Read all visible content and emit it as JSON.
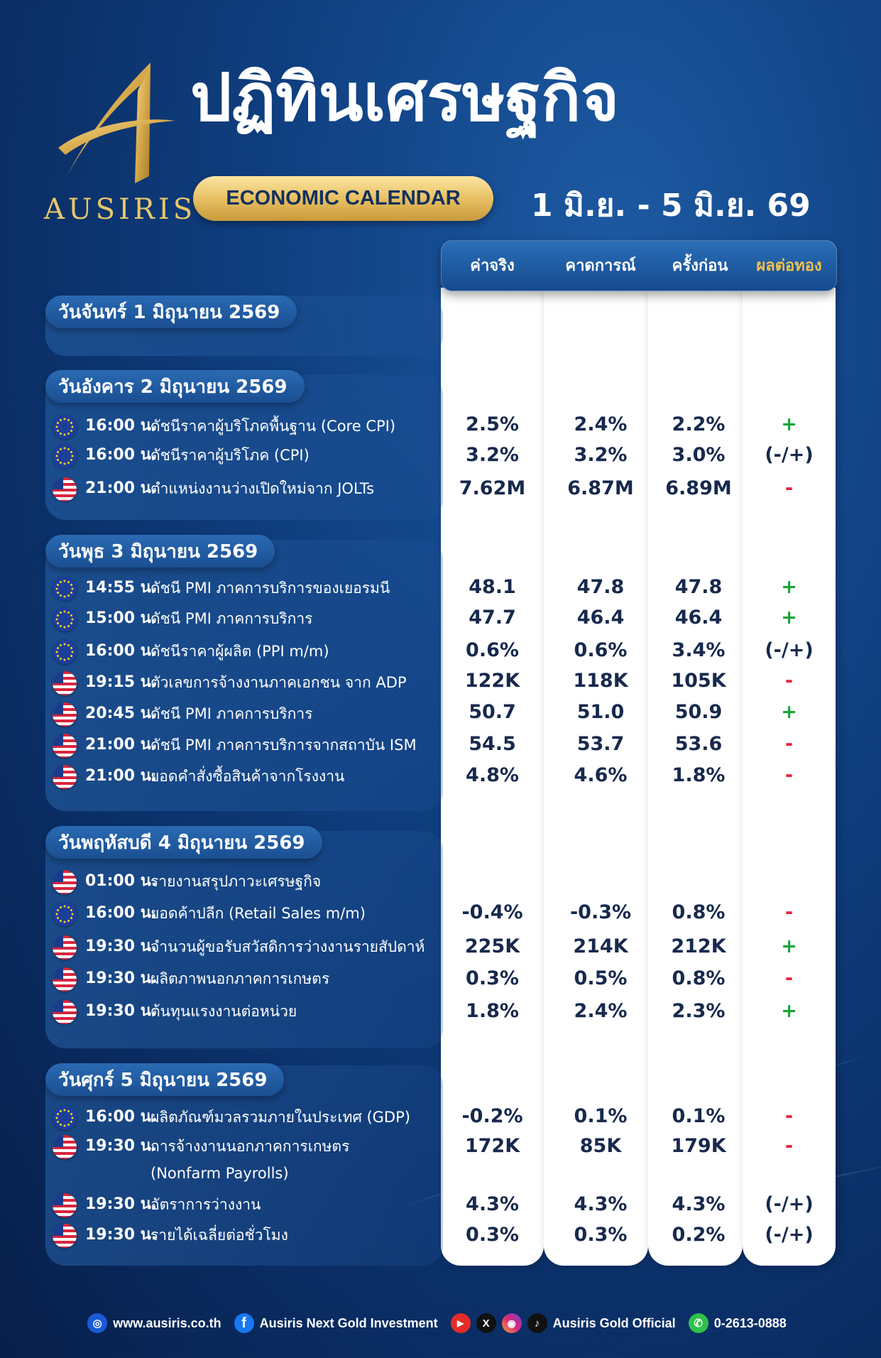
{
  "brand": {
    "logo_text": "AUSIRIS"
  },
  "header": {
    "title": "ปฏิทินเศรษฐกิจ",
    "subtitle": "ECONOMIC CALENDAR",
    "date_range": "1 มิ.ย. - 5 มิ.ย. 69"
  },
  "columns": {
    "actual": "ค่าจริง",
    "forecast": "คาดการณ์",
    "previous": "ครั้งก่อน",
    "impact": "ผลต่อทอง"
  },
  "colors": {
    "gold": "#e9c66a",
    "positive": "#1aa33b",
    "negative": "#e3263a",
    "navy": "#17294d"
  },
  "days": [
    {
      "label": "วันจันทร์ 1 มิถุนายน 2569",
      "events": []
    },
    {
      "label": "วันอังคาร 2 มิถุนายน 2569",
      "events": [
        {
          "flag": "eu-flag-icon",
          "time": "16:00 น.",
          "desc": "ดัชนีราคาผู้บริโภคพื้นฐาน (Core CPI)",
          "actual": "2.5%",
          "forecast": "2.4%",
          "previous": "2.2%",
          "impact": "+"
        },
        {
          "flag": "eu-flag-icon",
          "time": "16:00 น.",
          "desc": "ดัชนีราคาผู้บริโภค (CPI)",
          "actual": "3.2%",
          "forecast": "3.2%",
          "previous": "3.0%",
          "impact": "(-/+)"
        },
        {
          "flag": "us-flag-icon",
          "time": "21:00 น.",
          "desc": "ตำแหน่งงานว่างเปิดใหม่จาก JOLTs",
          "actual": "7.62M",
          "forecast": "6.87M",
          "previous": "6.89M",
          "impact": "-"
        }
      ]
    },
    {
      "label": "วันพุธ 3 มิถุนายน 2569",
      "events": [
        {
          "flag": "eu-flag-icon",
          "time": "14:55 น.",
          "desc": "ดัชนี PMI ภาคการบริการของเยอรมนี",
          "actual": "48.1",
          "forecast": "47.8",
          "previous": "47.8",
          "impact": "+"
        },
        {
          "flag": "eu-flag-icon",
          "time": "15:00 น.",
          "desc": "ดัชนี PMI ภาคการบริการ",
          "actual": "47.7",
          "forecast": "46.4",
          "previous": "46.4",
          "impact": "+"
        },
        {
          "flag": "eu-flag-icon",
          "time": "16:00 น.",
          "desc": "ดัชนีราคาผู้ผลิต (PPI m/m)",
          "actual": "0.6%",
          "forecast": "0.6%",
          "previous": "3.4%",
          "impact": "(-/+)"
        },
        {
          "flag": "us-flag-icon",
          "time": "19:15 น.",
          "desc": "ตัวเลขการจ้างงานภาคเอกชน จาก ADP",
          "actual": "122K",
          "forecast": "118K",
          "previous": "105K",
          "impact": "-"
        },
        {
          "flag": "us-flag-icon",
          "time": "20:45 น.",
          "desc": "ดัชนี PMI ภาคการบริการ",
          "actual": "50.7",
          "forecast": "51.0",
          "previous": "50.9",
          "impact": "+"
        },
        {
          "flag": "us-flag-icon",
          "time": "21:00 น.",
          "desc": "ดัชนี PMI ภาคการบริการจากสถาบัน ISM",
          "actual": "54.5",
          "forecast": "53.7",
          "previous": "53.6",
          "impact": "-"
        },
        {
          "flag": "us-flag-icon",
          "time": "21:00 น.",
          "desc": "ยอดคำสั่งซื้อสินค้าจากโรงงาน",
          "actual": "4.8%",
          "forecast": "4.6%",
          "previous": "1.8%",
          "impact": "-"
        }
      ]
    },
    {
      "label": "วันพฤหัสบดี 4 มิถุนายน 2569",
      "events": [
        {
          "flag": "us-flag-icon",
          "time": "01:00 น.",
          "desc": "รายงานสรุปภาวะเศรษฐกิจ",
          "actual": "",
          "forecast": "",
          "previous": "",
          "impact": ""
        },
        {
          "flag": "eu-flag-icon",
          "time": "16:00 น.",
          "desc": "ยอดค้าปลีก (Retail Sales m/m)",
          "actual": "-0.4%",
          "forecast": "-0.3%",
          "previous": "0.8%",
          "impact": "-"
        },
        {
          "flag": "us-flag-icon",
          "time": "19:30 น.",
          "desc": "จำนวนผู้ขอรับสวัสดิการว่างงานรายสัปดาห์",
          "actual": "225K",
          "forecast": "214K",
          "previous": "212K",
          "impact": "+"
        },
        {
          "flag": "us-flag-icon",
          "time": "19:30 น.",
          "desc": "ผลิตภาพนอกภาคการเกษตร",
          "actual": "0.3%",
          "forecast": "0.5%",
          "previous": "0.8%",
          "impact": "-"
        },
        {
          "flag": "us-flag-icon",
          "time": "19:30 น.",
          "desc": "ต้นทุนแรงงานต่อหน่วย",
          "actual": "1.8%",
          "forecast": "2.4%",
          "previous": "2.3%",
          "impact": "+"
        }
      ]
    },
    {
      "label": "วันศุกร์ 5 มิถุนายน 2569",
      "events": [
        {
          "flag": "eu-flag-icon",
          "time": "16:00 น.",
          "desc": "ผลิตภัณฑ์มวลรวมภายในประเทศ (GDP)",
          "actual": "-0.2%",
          "forecast": "0.1%",
          "previous": "0.1%",
          "impact": "-"
        },
        {
          "flag": "us-flag-icon",
          "time": "19:30 น.",
          "desc": "การจ้างงานนอกภาคการเกษตร",
          "desc2": "(Nonfarm Payrolls)",
          "actual": "172K",
          "forecast": "85K",
          "previous": "179K",
          "impact": "-"
        },
        {
          "flag": "us-flag-icon",
          "time": "19:30 น.",
          "desc": "อัตราการว่างงาน",
          "actual": "4.3%",
          "forecast": "4.3%",
          "previous": "4.3%",
          "impact": "(-/+)"
        },
        {
          "flag": "us-flag-icon",
          "time": "19:30 น.",
          "desc": "รายได้เฉลี่ยต่อชั่วโมง",
          "actual": "0.3%",
          "forecast": "0.3%",
          "previous": "0.2%",
          "impact": "(-/+)"
        }
      ]
    }
  ],
  "footer": {
    "website": "www.ausiris.co.th",
    "facebook": "Ausiris Next Gold Investment",
    "social": "Ausiris Gold Official",
    "phone": "0-2613-0888"
  }
}
